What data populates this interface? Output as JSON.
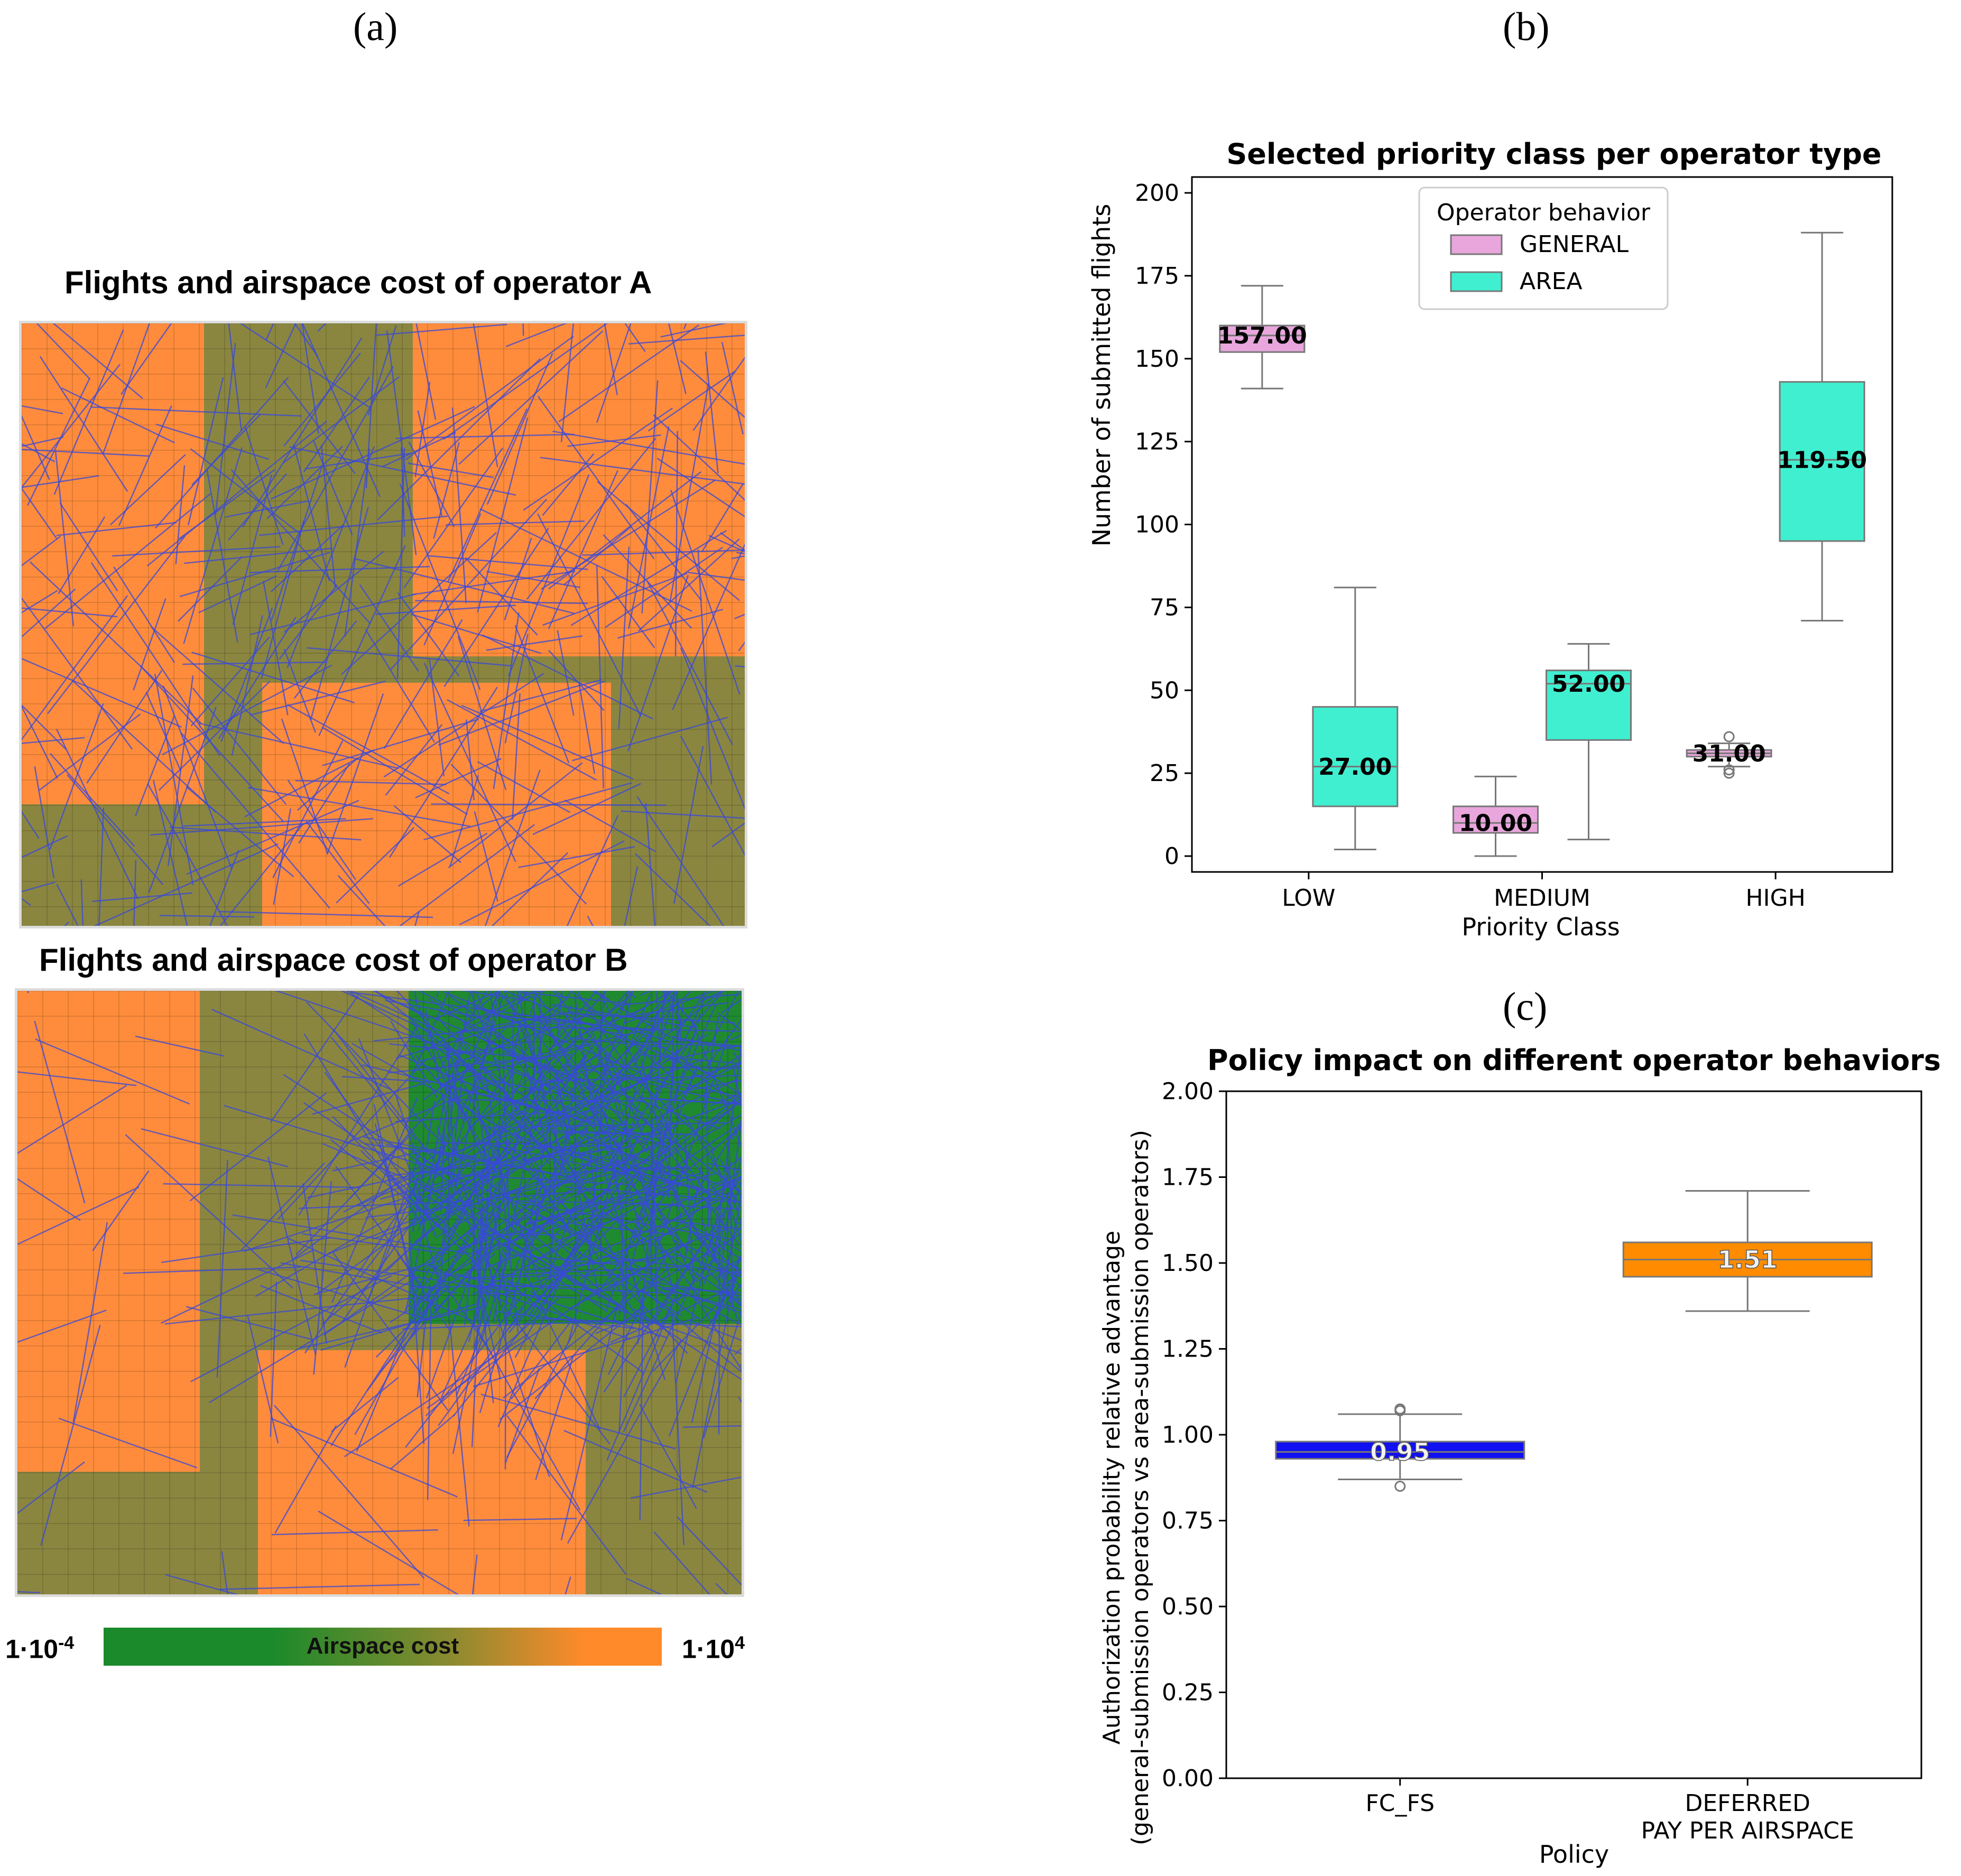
{
  "panels": {
    "a": "(a)",
    "b": "(b)",
    "c": "(c)"
  },
  "panel_a": {
    "map_a_title": "Flights and airspace cost of operator A",
    "map_b_title": "Flights and airspace cost of operator B",
    "colorbar": {
      "label": "Airspace cost",
      "min_base": "1·10",
      "min_exp": "-4",
      "max_base": "1·10",
      "max_exp": "4"
    },
    "colors": {
      "high_cost": "#fe8c3c",
      "mid_cost": "#8a8640",
      "low_cost": "#1f8a30",
      "flight": "#3848d8"
    }
  },
  "chart_data": [
    {
      "type": "box",
      "title": "Selected priority class per operator type",
      "xlabel": "Priority Class",
      "ylabel": "Number of submitted flights",
      "ylim": [
        0,
        200
      ],
      "yticks": [
        0,
        25,
        50,
        75,
        100,
        125,
        150,
        175,
        200
      ],
      "categories": [
        "LOW",
        "MEDIUM",
        "HIGH"
      ],
      "legend": {
        "title": "Operator behavior",
        "position": "top-center"
      },
      "series": [
        {
          "name": "GENERAL",
          "color": "#e8a6dc",
          "boxes": [
            {
              "category": "LOW",
              "whislo": 141,
              "q1": 152,
              "med": 157,
              "q3": 160,
              "whishi": 172,
              "fliers": [],
              "label": "157.00"
            },
            {
              "category": "MEDIUM",
              "whislo": 0,
              "q1": 7,
              "med": 10,
              "q3": 15,
              "whishi": 24,
              "fliers": [],
              "label": "10.00"
            },
            {
              "category": "HIGH",
              "whislo": 27,
              "q1": 30,
              "med": 31,
              "q3": 32,
              "whishi": 34,
              "fliers": [
                25,
                26,
                36
              ],
              "label": "31.00"
            }
          ]
        },
        {
          "name": "AREA",
          "color": "#40efd0",
          "boxes": [
            {
              "category": "LOW",
              "whislo": 2,
              "q1": 15,
              "med": 27,
              "q3": 45,
              "whishi": 81,
              "fliers": [],
              "label": "27.00"
            },
            {
              "category": "MEDIUM",
              "whislo": 5,
              "q1": 35,
              "med": 52,
              "q3": 56,
              "whishi": 64,
              "fliers": [],
              "label": "52.00"
            },
            {
              "category": "HIGH",
              "whislo": 71,
              "q1": 95,
              "med": 119.5,
              "q3": 143,
              "whishi": 188,
              "fliers": [],
              "label": "119.50"
            }
          ]
        }
      ]
    },
    {
      "type": "box",
      "title": "Policy impact on different operator behaviors",
      "xlabel": "Policy",
      "ylabel_line1": "Authorization probability relative advantage",
      "ylabel_line2": "(general-submission operators vs area-submission operators)",
      "ylim": [
        0,
        2
      ],
      "yticks": [
        "0.00",
        "0.25",
        "0.50",
        "0.75",
        "1.00",
        "1.25",
        "1.50",
        "1.75",
        "2.00"
      ],
      "categories": [
        [
          "FC_FS"
        ],
        [
          "DEFERRED",
          "PAY PER AIRSPACE"
        ]
      ],
      "boxes": [
        {
          "category": "FC_FS",
          "color": "#1010f0",
          "whislo": 0.87,
          "q1": 0.93,
          "med": 0.95,
          "q3": 0.98,
          "whishi": 1.06,
          "fliers": [
            0.85,
            1.07,
            1.075
          ],
          "label": "0.95"
        },
        {
          "category": "DEFERRED PAY PER AIRSPACE",
          "color": "#ff8c00",
          "whislo": 1.36,
          "q1": 1.46,
          "med": 1.51,
          "q3": 1.56,
          "whishi": 1.71,
          "fliers": [],
          "label": "1.51"
        }
      ]
    }
  ]
}
